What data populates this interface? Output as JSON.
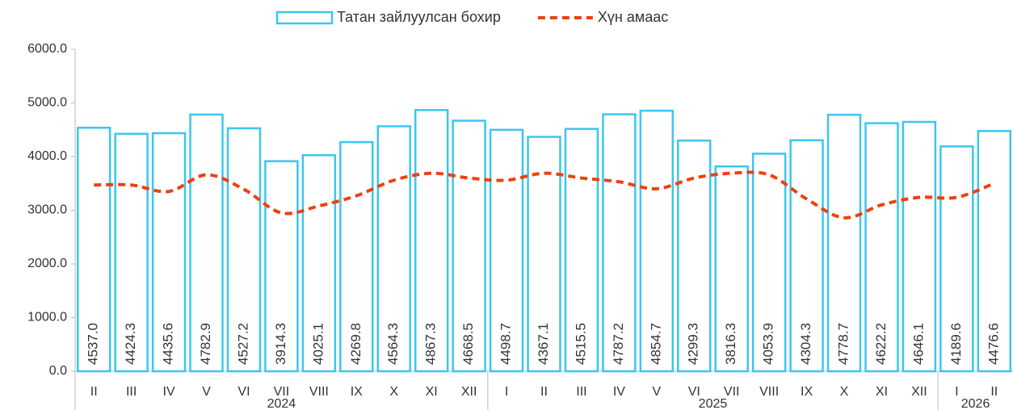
{
  "chart_data": {
    "type": "bar_line",
    "groups": [
      {
        "label": "2024",
        "categories": [
          "II",
          "III",
          "IV",
          "V",
          "VI",
          "VII",
          "VIII",
          "IX",
          "X",
          "XI",
          "XII"
        ]
      },
      {
        "label": "2025",
        "categories": [
          "I",
          "II",
          "III",
          "IV",
          "V",
          "VI",
          "VII",
          "VIII",
          "IX",
          "X",
          "XI",
          "XII"
        ]
      },
      {
        "label": "2026",
        "categories": [
          "I",
          "II"
        ]
      }
    ],
    "series": [
      {
        "name": "Татан зайлуулсан бохир",
        "type": "bar",
        "color": "#3cc6ef",
        "values": [
          4537.0,
          4424.3,
          4435.6,
          4782.9,
          4527.2,
          3914.3,
          4025.1,
          4269.8,
          4564.3,
          4867.3,
          4668.5,
          4498.7,
          4367.1,
          4515.5,
          4787.2,
          4854.7,
          4299.3,
          3816.3,
          4053.9,
          4304.3,
          4778.7,
          4622.2,
          4646.1,
          4189.6,
          4476.6
        ],
        "value_labels": [
          "4537.0",
          "4424.3",
          "4435.6",
          "4782.9",
          "4527.2",
          "3914.3",
          "4025.1",
          "4269.8",
          "4564.3",
          "4867.3",
          "4668.5",
          "4498.7",
          "4367.1",
          "4515.5",
          "4787.2",
          "4854.7",
          "4299.3",
          "3816.3",
          "4053.9",
          "4304.3",
          "4778.7",
          "4622.2",
          "4646.1",
          "4189.6",
          "4476.6"
        ]
      },
      {
        "name": "Хүн амаас",
        "type": "line",
        "color": "#f0400c",
        "values": [
          3470,
          3470,
          3350,
          3660,
          3390,
          2950,
          3080,
          3270,
          3560,
          3690,
          3600,
          3560,
          3690,
          3600,
          3530,
          3400,
          3600,
          3690,
          3660,
          3210,
          2860,
          3100,
          3240,
          3240,
          3500
        ]
      }
    ],
    "ylim": [
      0,
      6000
    ],
    "yticks": [
      {
        "value": 0,
        "label": "0.0"
      },
      {
        "value": 1000,
        "label": "1000.0"
      },
      {
        "value": 2000,
        "label": "2000.0"
      },
      {
        "value": 3000,
        "label": "3000.0"
      },
      {
        "value": 4000,
        "label": "4000.0"
      },
      {
        "value": 5000,
        "label": "5000.0"
      },
      {
        "value": 6000,
        "label": "6000.0"
      }
    ],
    "legend": "top"
  }
}
